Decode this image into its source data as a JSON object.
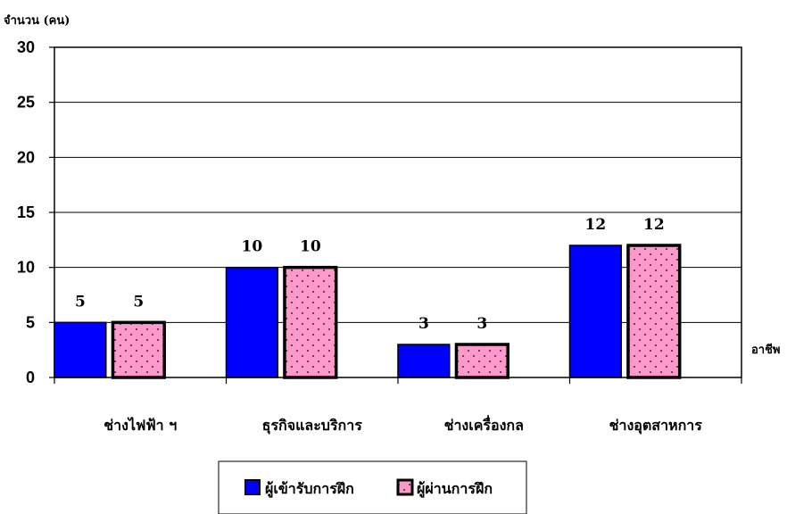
{
  "chart_data": {
    "type": "bar",
    "ylabel": "จำนวน (คน)",
    "xlabel": "อาชีพ",
    "categories": [
      "ช่างไฟฟ้า ฯ",
      "ธุรกิจและบริการ",
      "ช่างเครื่องกล",
      "ช่างอุตสาหการ"
    ],
    "series": [
      {
        "name": "ผู้เข้ารับการฝึก",
        "values": [
          5,
          10,
          3,
          12
        ],
        "color": "#0000ff",
        "pattern": "solid"
      },
      {
        "name": "ผู้ผ่านการฝึก",
        "values": [
          5,
          10,
          3,
          12
        ],
        "color": "#ff99cc",
        "pattern": "dots"
      }
    ],
    "ylim": [
      0,
      30
    ],
    "yticks": [
      0,
      5,
      10,
      15,
      20,
      25,
      30
    ],
    "grid": true,
    "legend": "bottom",
    "show_data_labels": true
  }
}
